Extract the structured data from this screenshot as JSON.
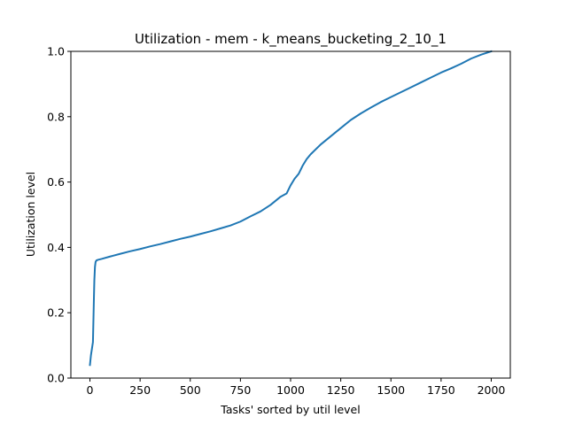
{
  "chart_data": {
    "type": "line",
    "title": "Utilization - mem - k_means_bucketing_2_10_1",
    "xlabel": "Tasks' sorted by util level",
    "ylabel": "Utilization level",
    "xlim": [
      -95,
      2095
    ],
    "ylim": [
      0.0,
      1.0
    ],
    "xticks": [
      0,
      250,
      500,
      750,
      1000,
      1250,
      1500,
      1750,
      2000
    ],
    "xtick_labels": [
      "0",
      "250",
      "500",
      "750",
      "1000",
      "1250",
      "1500",
      "1750",
      "2000"
    ],
    "yticks": [
      0.0,
      0.2,
      0.4,
      0.6,
      0.8,
      1.0
    ],
    "ytick_labels": [
      "0.0",
      "0.2",
      "0.4",
      "0.6",
      "0.8",
      "1.0"
    ],
    "grid": false,
    "line_color": "#1f77b4",
    "series": [
      {
        "x": [
          0,
          5,
          10,
          15,
          20,
          22,
          25,
          28,
          32,
          40,
          60,
          100,
          150,
          200,
          250,
          300,
          350,
          400,
          450,
          500,
          550,
          600,
          650,
          700,
          750,
          800,
          850,
          900,
          950,
          980,
          1000,
          1020,
          1040,
          1060,
          1080,
          1100,
          1150,
          1200,
          1250,
          1300,
          1350,
          1400,
          1450,
          1500,
          1550,
          1600,
          1650,
          1700,
          1750,
          1800,
          1850,
          1900,
          1950,
          2000
        ],
        "y": [
          0.04,
          0.07,
          0.09,
          0.11,
          0.25,
          0.3,
          0.34,
          0.355,
          0.36,
          0.362,
          0.365,
          0.372,
          0.38,
          0.388,
          0.395,
          0.403,
          0.41,
          0.418,
          0.426,
          0.433,
          0.441,
          0.449,
          0.458,
          0.467,
          0.479,
          0.495,
          0.51,
          0.53,
          0.555,
          0.565,
          0.59,
          0.61,
          0.625,
          0.65,
          0.67,
          0.685,
          0.715,
          0.74,
          0.765,
          0.79,
          0.81,
          0.828,
          0.845,
          0.86,
          0.875,
          0.89,
          0.905,
          0.92,
          0.935,
          0.948,
          0.962,
          0.978,
          0.99,
          1.0
        ]
      }
    ]
  }
}
